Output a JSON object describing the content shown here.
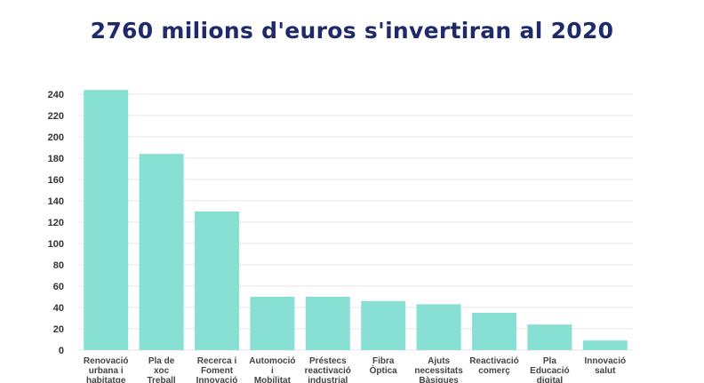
{
  "chart_data": {
    "type": "bar",
    "title": "2760 milions d'euros s'invertiran al 2020",
    "xlabel": "",
    "ylabel": "",
    "ylim": [
      0,
      240
    ],
    "yticks": [
      0,
      20,
      40,
      60,
      80,
      100,
      120,
      140,
      160,
      180,
      200,
      220,
      240
    ],
    "grid": true,
    "bar_color": "#88e0d5",
    "categories": [
      [
        "Renovació",
        "urbana i",
        "habitatge"
      ],
      [
        "Pla de",
        "xoc",
        "Treball"
      ],
      [
        "Recerca i",
        "Foment",
        "Innovació"
      ],
      [
        "Automoció",
        "i",
        "Mobilitat"
      ],
      [
        "Préstecs",
        "reactivació",
        "industrial"
      ],
      [
        "Fibra",
        "Òptica"
      ],
      [
        "Ajuts",
        "necessitats",
        "Bàsiques"
      ],
      [
        "Reactivació",
        "comerç"
      ],
      [
        "Pla",
        "Educació",
        "digital"
      ],
      [
        "Innovació",
        "salut"
      ]
    ],
    "values": [
      244,
      184,
      130,
      50,
      50,
      46,
      43,
      35,
      24,
      9
    ]
  }
}
